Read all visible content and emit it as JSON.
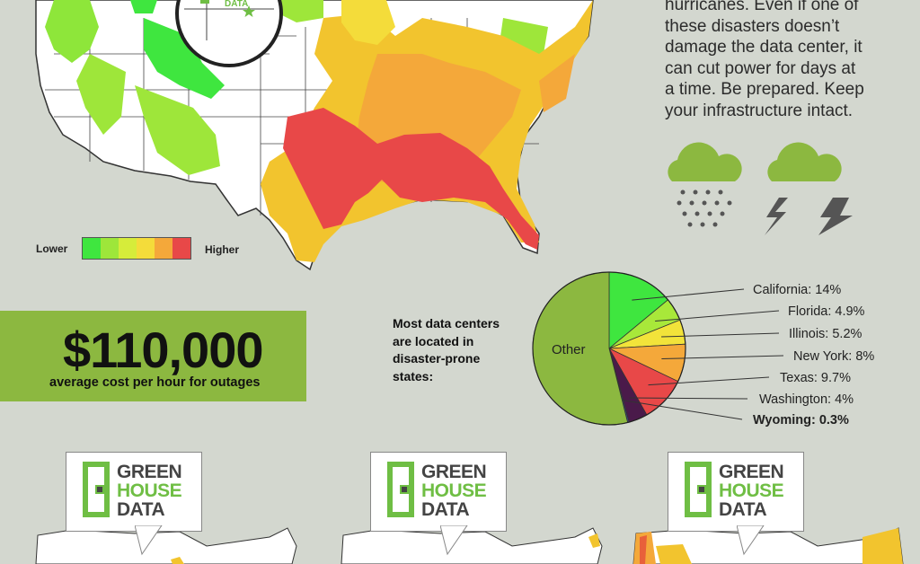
{
  "paragraph": {
    "lines": [
      "hurricanes. Even if one of",
      "these disasters doesn’t",
      "damage the data center, it",
      "can cut power for days at",
      "a time. Be prepared. Keep",
      "your infrastructure intact."
    ]
  },
  "icons": [
    "rain-cloud-icon",
    "storm-cloud-lightning-icon"
  ],
  "map_logo_text": "DATA",
  "legend": {
    "low_label": "Lower",
    "high_label": "Higher",
    "colors": [
      "#3fe63f",
      "#9ee63a",
      "#d6ec3a",
      "#f4dc3a",
      "#f4a83a",
      "#e84848"
    ]
  },
  "cost": {
    "amount": "$110,000",
    "caption": "average cost per hour for outages"
  },
  "pie": {
    "caption_lines": [
      "Most data centers",
      "are located in",
      "disaster-prone",
      "states:"
    ],
    "other_label": "Other",
    "labels": [
      "California: 14%",
      "Florida: 4.9%",
      "Illinois: 5.2%",
      "New York: 8%",
      "Texas: 9.7%",
      "Washington: 4%",
      "Wyoming: 0.3%"
    ]
  },
  "chart_data": {
    "type": "pie",
    "categories": [
      "California",
      "Florida",
      "Illinois",
      "New York",
      "Texas",
      "Washington",
      "Wyoming",
      "Other"
    ],
    "values": [
      14,
      4.9,
      5.2,
      8,
      9.7,
      4,
      0.3,
      53.9
    ],
    "colors": [
      "#3fe63f",
      "#a8e83a",
      "#f2e33a",
      "#f4a83a",
      "#e84848",
      "#4a1a4a",
      "#3a4a8a",
      "#8cb840"
    ]
  },
  "logos": [
    {
      "line1": "GREEN",
      "line2": "HOUSE",
      "line3": "DATA"
    },
    {
      "line1": "GREEN",
      "line2": "HOUSE",
      "line3": "DATA"
    },
    {
      "line1": "GREEN",
      "line2": "HOUSE",
      "line3": "DATA"
    }
  ]
}
